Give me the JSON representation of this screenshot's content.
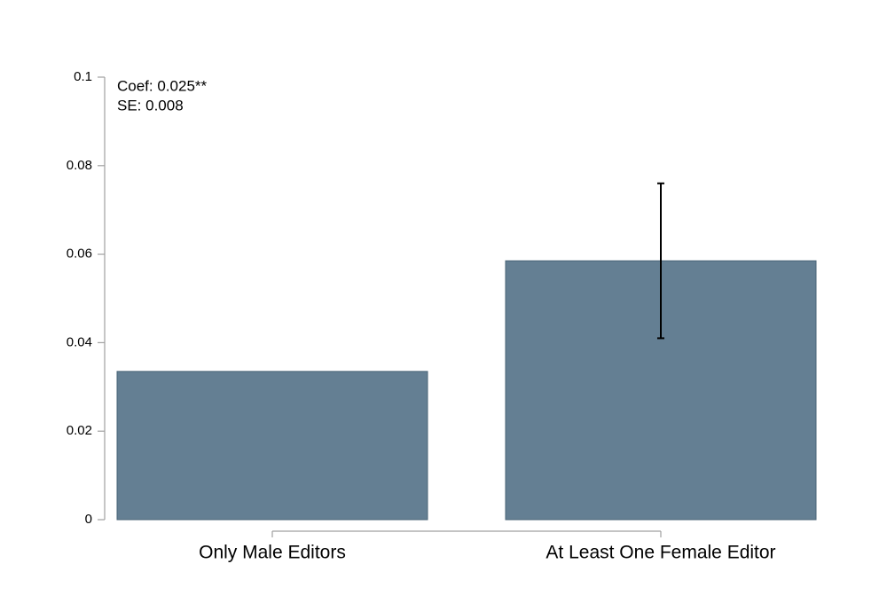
{
  "chart_data": {
    "type": "bar",
    "categories": [
      "Only Male Editors",
      "At Least One Female Editor"
    ],
    "values": [
      0.0335,
      0.0585
    ],
    "errors": [
      null,
      0.0175
    ],
    "color": "#647f93",
    "ylim": [
      0,
      0.1
    ],
    "yticks": [
      0,
      0.02,
      0.04,
      0.06,
      0.08,
      0.1
    ],
    "grid": false,
    "annotations": [
      "Coef: 0.025**",
      "SE: 0.008"
    ]
  }
}
